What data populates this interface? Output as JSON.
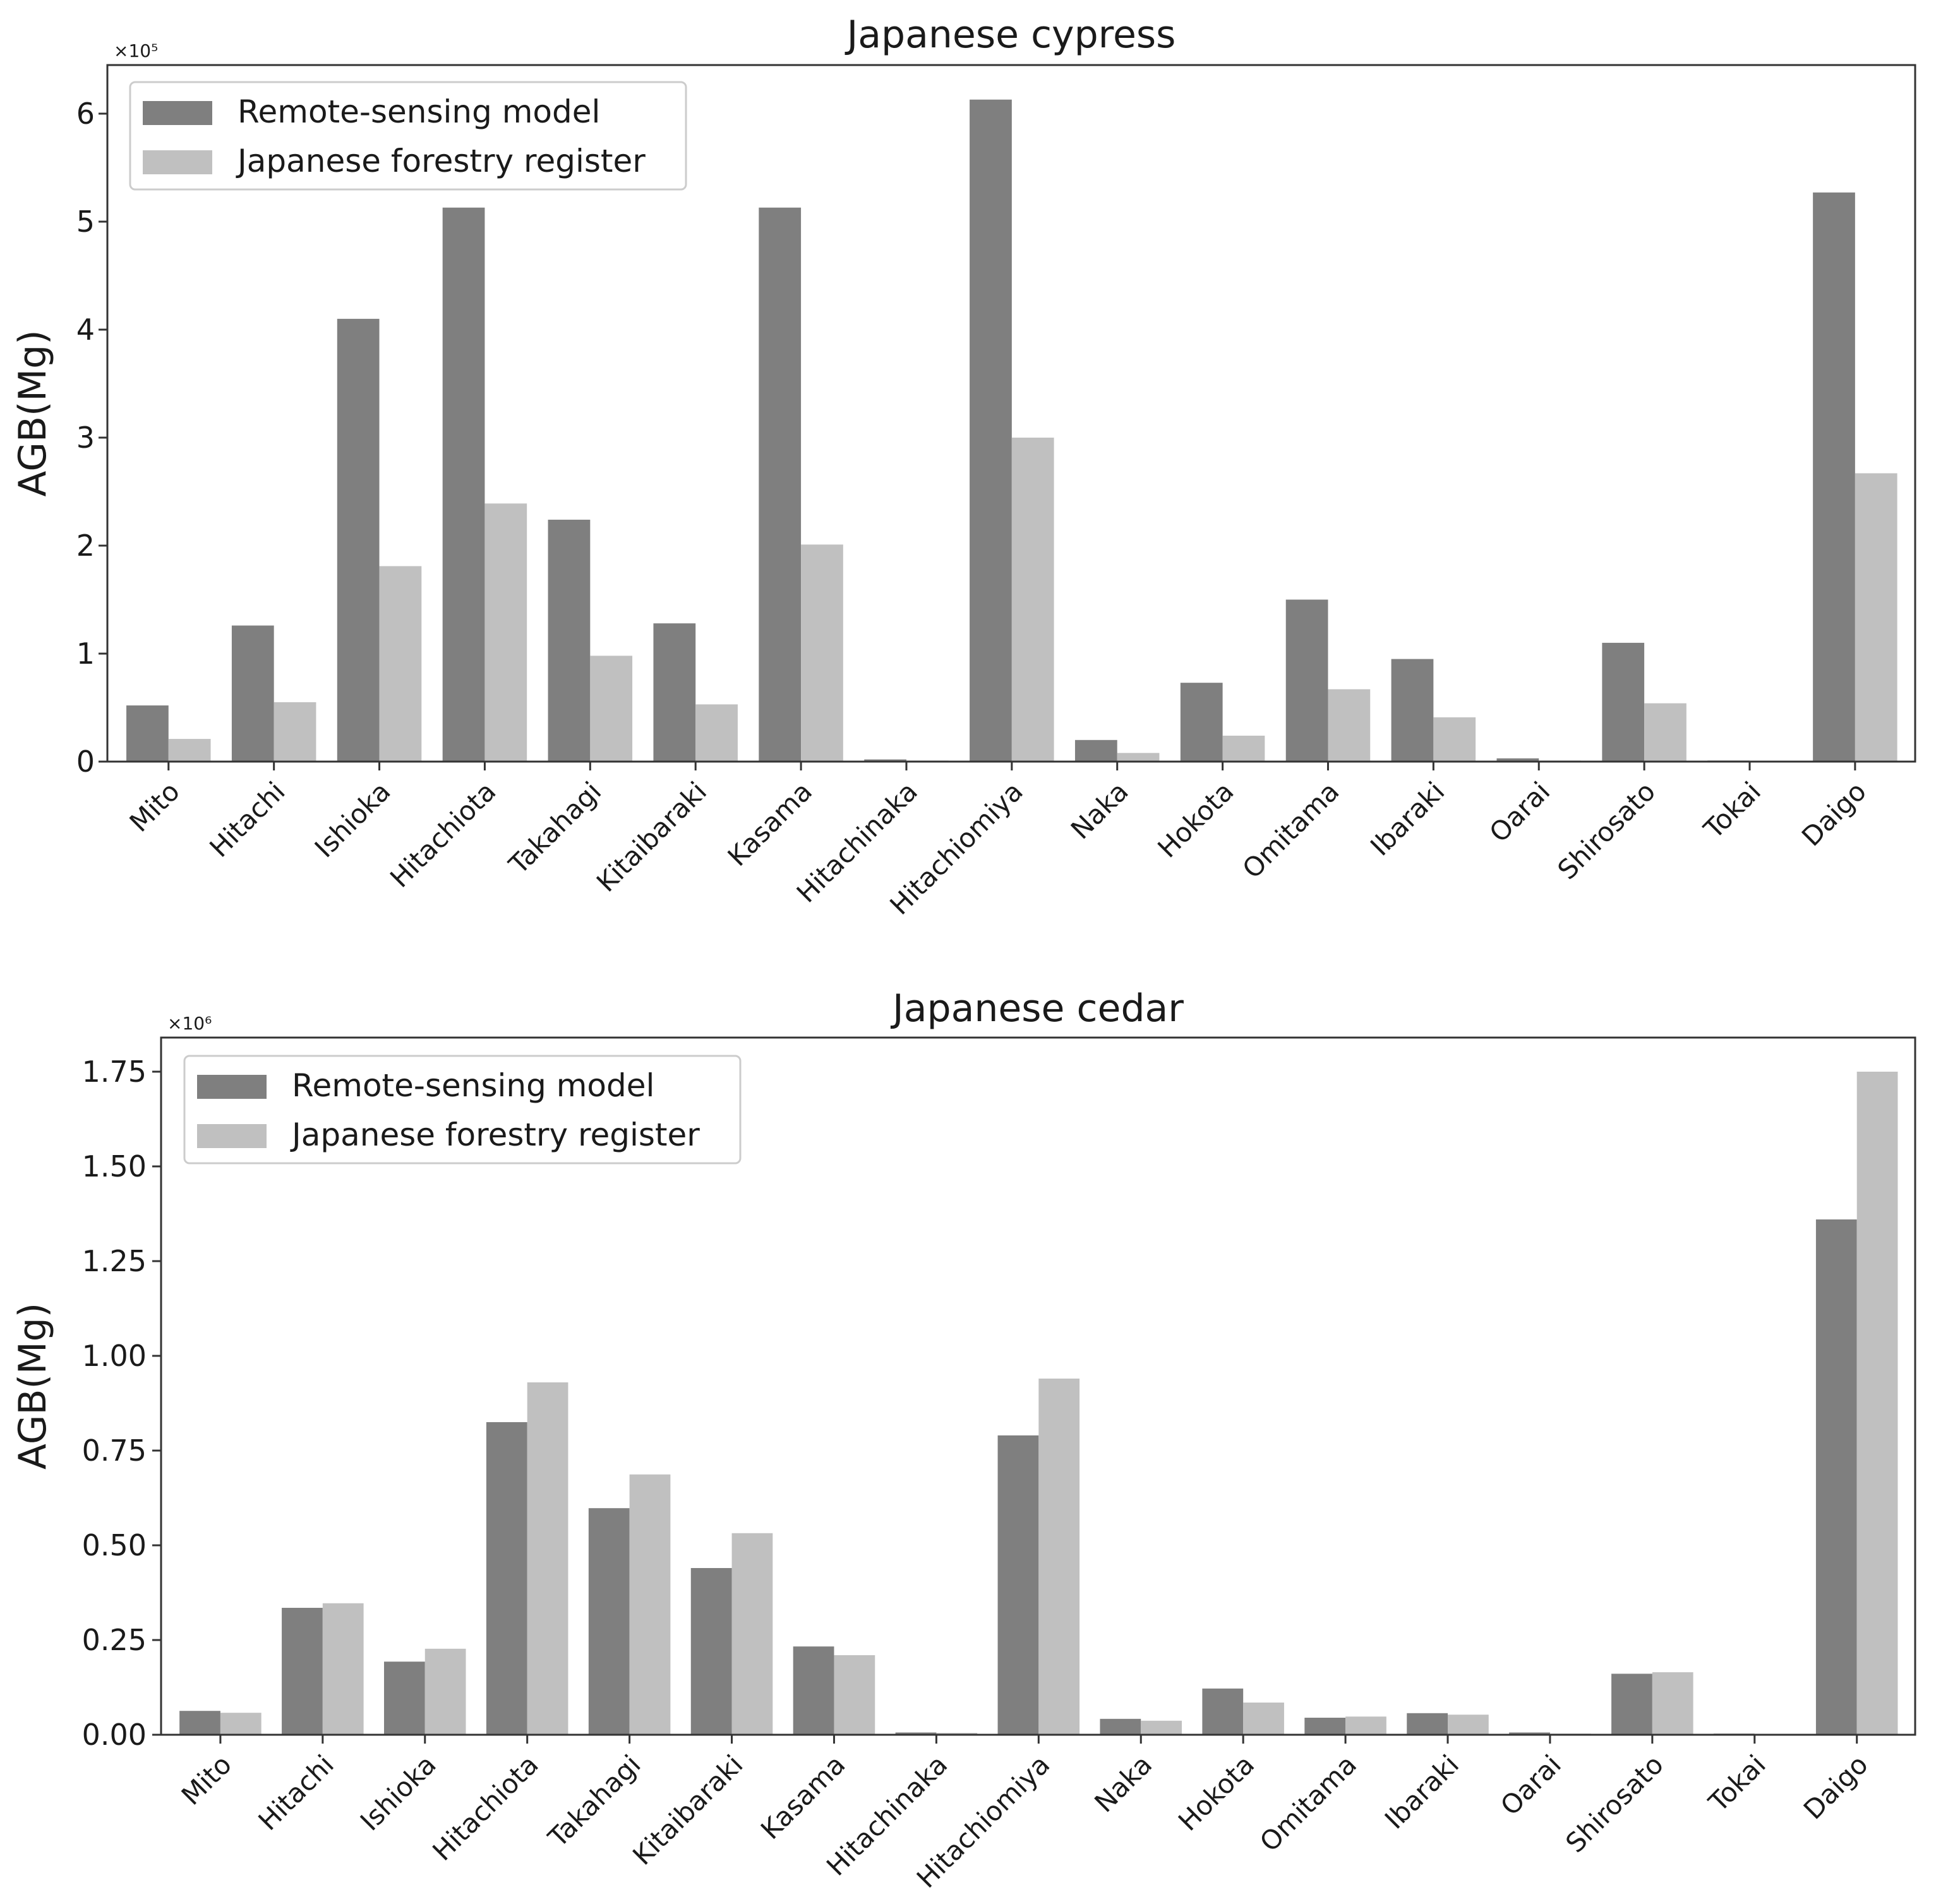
{
  "figure": {
    "colors": {
      "model": "#7f7f7f",
      "register": "#c0c0c0",
      "axis": "#333333",
      "text": "#1a1a1a"
    }
  },
  "chart_data": [
    {
      "type": "bar",
      "title": "Japanese cypress",
      "xlabel": "",
      "ylabel": "AGB(Mg)",
      "multiplier_label": "×10⁵",
      "ylim": [
        0,
        6.45
      ],
      "yticks": [
        0,
        1,
        2,
        3,
        4,
        5,
        6
      ],
      "ytick_labels": [
        "0",
        "1",
        "2",
        "3",
        "4",
        "5",
        "6"
      ],
      "legend_position": "top-left",
      "categories": [
        "Mito",
        "Hitachi",
        "Ishioka",
        "Hitachiota",
        "Takahagi",
        "Kitaibaraki",
        "Kasama",
        "Hitachinaka",
        "Hitachiomiya",
        "Naka",
        "Hokota",
        "Omitama",
        "Ibaraki",
        "Oarai",
        "Shirosato",
        "Tokai",
        "Daigo"
      ],
      "series": [
        {
          "name": "Remote-sensing model",
          "values": [
            0.52,
            1.26,
            4.1,
            5.13,
            2.24,
            1.28,
            5.13,
            0.02,
            6.13,
            0.2,
            0.73,
            1.5,
            0.95,
            0.03,
            1.1,
            0.01,
            5.27
          ]
        },
        {
          "name": "Japanese forestry register",
          "values": [
            0.21,
            0.55,
            1.81,
            2.39,
            0.98,
            0.53,
            2.01,
            0.01,
            3.0,
            0.08,
            0.24,
            0.67,
            0.41,
            0.01,
            0.54,
            0.0,
            2.67
          ]
        }
      ]
    },
    {
      "type": "bar",
      "title": "Japanese cedar",
      "xlabel": "",
      "ylabel": "AGB(Mg)",
      "multiplier_label": "×10⁶",
      "ylim": [
        0,
        1.84
      ],
      "yticks": [
        0,
        0.25,
        0.5,
        0.75,
        1.0,
        1.25,
        1.5,
        1.75
      ],
      "ytick_labels": [
        "0.00",
        "0.25",
        "0.50",
        "0.75",
        "1.00",
        "1.25",
        "1.50",
        "1.75"
      ],
      "legend_position": "top-left",
      "categories": [
        "Mito",
        "Hitachi",
        "Ishioka",
        "Hitachiota",
        "Takahagi",
        "Kitaibaraki",
        "Kasama",
        "Hitachinaka",
        "Hitachiomiya",
        "Naka",
        "Hokota",
        "Omitama",
        "Ibaraki",
        "Oarai",
        "Shirosato",
        "Tokai",
        "Daigo"
      ],
      "series": [
        {
          "name": "Remote-sensing model",
          "values": [
            0.063,
            0.335,
            0.193,
            0.825,
            0.598,
            0.44,
            0.233,
            0.006,
            0.79,
            0.042,
            0.122,
            0.045,
            0.057,
            0.006,
            0.161,
            0.003,
            1.36
          ]
        },
        {
          "name": "Japanese forestry register",
          "values": [
            0.058,
            0.347,
            0.227,
            0.93,
            0.687,
            0.532,
            0.21,
            0.005,
            0.94,
            0.037,
            0.085,
            0.048,
            0.053,
            0.003,
            0.165,
            0.001,
            1.75
          ]
        }
      ]
    }
  ]
}
